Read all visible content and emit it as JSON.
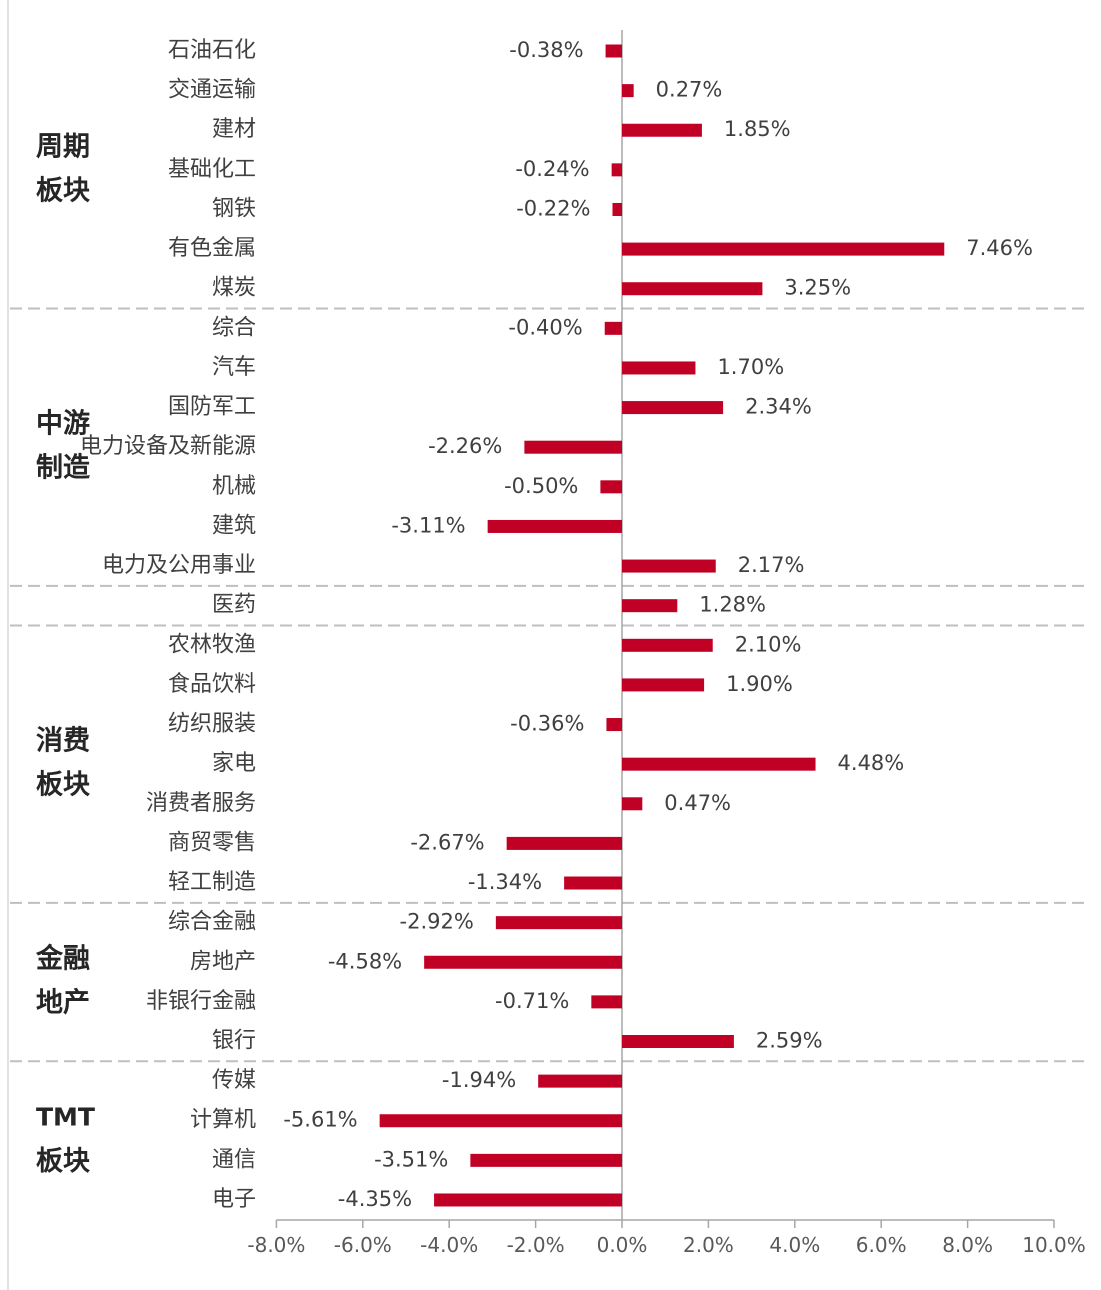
{
  "chart_data": {
    "type": "bar",
    "orientation": "horizontal",
    "categories": [
      "石油石化",
      "交通运输",
      "建材",
      "基础化工",
      "钢铁",
      "有色金属",
      "煤炭",
      "综合",
      "汽车",
      "国防军工",
      "电力设备及新能源",
      "机械",
      "建筑",
      "电力及公用事业",
      "医药",
      "农林牧渔",
      "食品饮料",
      "纺织服装",
      "家电",
      "消费者服务",
      "商贸零售",
      "轻工制造",
      "综合金融",
      "房地产",
      "非银行金融",
      "银行",
      "传媒",
      "计算机",
      "通信",
      "电子"
    ],
    "values": [
      -0.38,
      0.27,
      1.85,
      -0.24,
      -0.22,
      7.46,
      3.25,
      -0.4,
      1.7,
      2.34,
      -2.26,
      -0.5,
      -3.11,
      2.17,
      1.28,
      2.1,
      1.9,
      -0.36,
      4.48,
      0.47,
      -2.67,
      -1.34,
      -2.92,
      -4.58,
      -0.71,
      2.59,
      -1.94,
      -5.61,
      -3.51,
      -4.35
    ],
    "data_labels": [
      "-0.38%",
      "0.27%",
      "1.85%",
      "-0.24%",
      "-0.22%",
      "7.46%",
      "3.25%",
      "-0.40%",
      "1.70%",
      "2.34%",
      "-2.26%",
      "-0.50%",
      "-3.11%",
      "2.17%",
      "1.28%",
      "2.10%",
      "1.90%",
      "-0.36%",
      "4.48%",
      "0.47%",
      "-2.67%",
      "-1.34%",
      "-2.92%",
      "-4.58%",
      "-0.71%",
      "2.59%",
      "-1.94%",
      "-5.61%",
      "-3.51%",
      "-4.35%"
    ],
    "xlim": [
      -8,
      10
    ],
    "xticks": [
      -8,
      -6,
      -4,
      -2,
      0,
      2,
      4,
      6,
      8,
      10
    ],
    "xtick_labels": [
      "-8.0%",
      "-6.0%",
      "-4.0%",
      "-2.0%",
      "0.0%",
      "2.0%",
      "4.0%",
      "6.0%",
      "8.0%",
      "10.0%"
    ],
    "groups": [
      {
        "lines": [
          "周期",
          "板块"
        ],
        "start": 0,
        "end": 6
      },
      {
        "lines": [
          "中游",
          "制造"
        ],
        "start": 7,
        "end": 13
      },
      {
        "lines": [],
        "start": 14,
        "end": 14
      },
      {
        "lines": [
          "消费",
          "板块"
        ],
        "start": 15,
        "end": 21
      },
      {
        "lines": [
          "金融",
          "地产"
        ],
        "start": 22,
        "end": 25
      },
      {
        "lines": [
          "TMT",
          "板块"
        ],
        "start": 26,
        "end": 29
      }
    ],
    "bar_color": "#c00025",
    "separator_color": "#bfbfbf",
    "axis_color": "#a6a6a6",
    "grid": false
  }
}
